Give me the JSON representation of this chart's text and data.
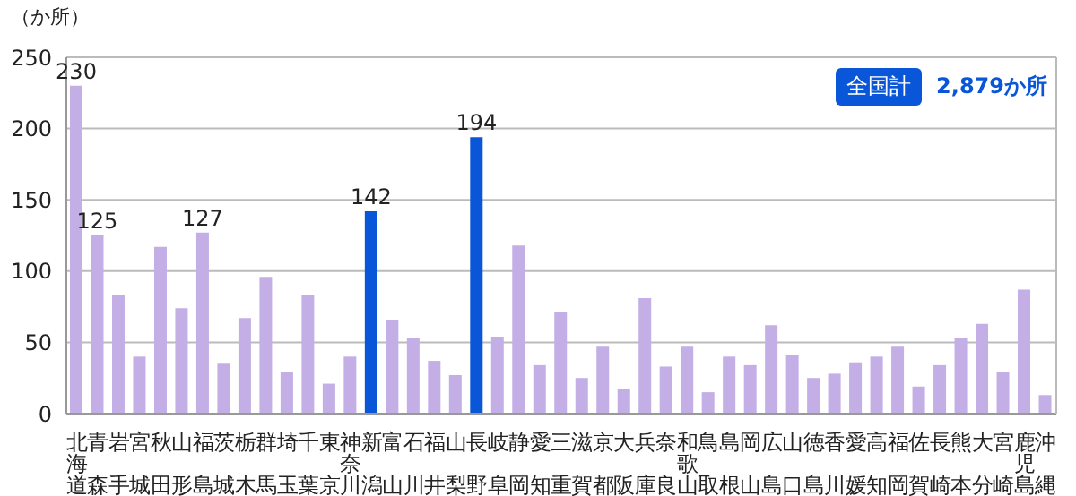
{
  "chart_data": {
    "type": "bar",
    "ylabel": "（か所）",
    "categories": [
      "北海道",
      "青森",
      "岩手",
      "宮城",
      "秋田",
      "山形",
      "福島",
      "茨城",
      "栃木",
      "群馬",
      "埼玉",
      "千葉",
      "東京",
      "神奈川",
      "新潟",
      "富山",
      "石川",
      "福井",
      "山梨",
      "長野",
      "岐阜",
      "静岡",
      "愛知",
      "三重",
      "滋賀",
      "京都",
      "大阪",
      "兵庫",
      "奈良",
      "和歌山",
      "鳥取",
      "島根",
      "岡山",
      "広島",
      "山口",
      "徳島",
      "香川",
      "愛媛",
      "高知",
      "福岡",
      "佐賀",
      "長崎",
      "熊本",
      "大分",
      "宮崎",
      "鹿児島",
      "沖縄"
    ],
    "values": [
      230,
      125,
      83,
      40,
      117,
      74,
      127,
      35,
      67,
      96,
      29,
      83,
      21,
      40,
      142,
      66,
      53,
      37,
      27,
      194,
      54,
      118,
      34,
      71,
      25,
      47,
      17,
      81,
      33,
      47,
      15,
      40,
      34,
      62,
      41,
      25,
      28,
      36,
      40,
      47,
      19,
      34,
      53,
      63,
      29,
      87,
      13
    ],
    "colors": [
      "#c3aee6",
      "#c3aee6",
      "#c3aee6",
      "#c3aee6",
      "#c3aee6",
      "#c3aee6",
      "#c3aee6",
      "#c3aee6",
      "#c3aee6",
      "#c3aee6",
      "#c3aee6",
      "#c3aee6",
      "#c3aee6",
      "#c3aee6",
      "#0a56d8",
      "#c3aee6",
      "#c3aee6",
      "#c3aee6",
      "#c3aee6",
      "#0a56d8",
      "#c3aee6",
      "#c3aee6",
      "#c3aee6",
      "#c3aee6",
      "#c3aee6",
      "#c3aee6",
      "#c3aee6",
      "#c3aee6",
      "#c3aee6",
      "#c3aee6",
      "#c3aee6",
      "#c3aee6",
      "#c3aee6",
      "#c3aee6",
      "#c3aee6",
      "#c3aee6",
      "#c3aee6",
      "#c3aee6",
      "#c3aee6",
      "#c3aee6",
      "#c3aee6",
      "#c3aee6",
      "#c3aee6",
      "#c3aee6",
      "#c3aee6",
      "#c3aee6",
      "#c3aee6"
    ],
    "value_labels": [
      "230",
      "125",
      null,
      null,
      null,
      null,
      "127",
      null,
      null,
      null,
      null,
      null,
      null,
      null,
      "142",
      null,
      null,
      null,
      null,
      "194",
      null,
      null,
      null,
      null,
      null,
      null,
      null,
      null,
      null,
      null,
      null,
      null,
      null,
      null,
      null,
      null,
      null,
      null,
      null,
      null,
      null,
      null,
      null,
      null,
      null,
      null,
      null
    ],
    "ylim": [
      0,
      250
    ],
    "yticks": [
      0,
      50,
      100,
      150,
      200,
      250
    ],
    "grid": "y",
    "annotations": [
      "全国計",
      "2,879か所"
    ]
  }
}
